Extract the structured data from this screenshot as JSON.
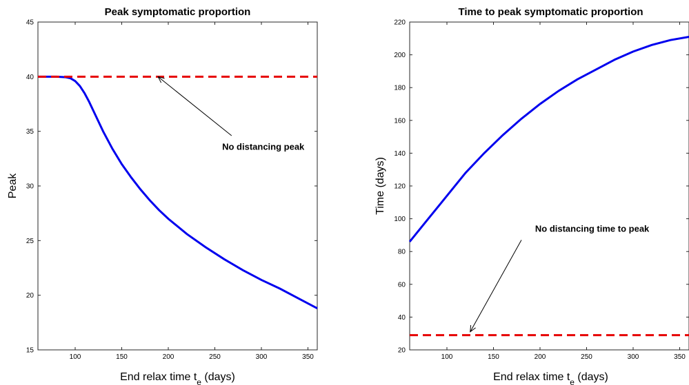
{
  "chart_data": [
    {
      "type": "line",
      "title": "Peak symptomatic proportion",
      "xlabel": "End relax time t",
      "xlabel_sub": "e",
      "xlabel_suffix": " (days)",
      "ylabel": "Peak",
      "xlim": [
        60,
        360
      ],
      "ylim": [
        15,
        45
      ],
      "xticks": [
        100,
        150,
        200,
        250,
        300,
        350
      ],
      "yticks": [
        15,
        20,
        25,
        30,
        35,
        40,
        45
      ],
      "grid": false,
      "series": [
        {
          "kind": "curve",
          "color": "#0000ee",
          "x": [
            60,
            80,
            90,
            95,
            100,
            105,
            110,
            115,
            120,
            125,
            130,
            140,
            150,
            160,
            170,
            180,
            190,
            200,
            220,
            240,
            260,
            280,
            300,
            320,
            340,
            360
          ],
          "y": [
            40.0,
            40.0,
            39.95,
            39.85,
            39.6,
            39.15,
            38.5,
            37.7,
            36.8,
            35.9,
            35.0,
            33.4,
            32.0,
            30.8,
            29.7,
            28.7,
            27.8,
            27.0,
            25.6,
            24.4,
            23.3,
            22.3,
            21.4,
            20.6,
            19.7,
            18.8
          ]
        },
        {
          "kind": "reference",
          "color": "#e60000",
          "x": [
            60,
            360
          ],
          "y": [
            40,
            40
          ]
        }
      ],
      "annotation": {
        "text": "No distancing peak",
        "text_at": [
          302,
          33.3
        ],
        "arrow_from": [
          268,
          34.6
        ],
        "arrow_to": [
          189,
          40.0
        ]
      }
    },
    {
      "type": "line",
      "title": "Time to peak symptomatic proportion",
      "xlabel": "End relax time t",
      "xlabel_sub": "e",
      "xlabel_suffix": " (days)",
      "ylabel": "Time (days)",
      "xlim": [
        60,
        360
      ],
      "ylim": [
        20,
        220
      ],
      "xticks": [
        100,
        150,
        200,
        250,
        300,
        350
      ],
      "yticks": [
        20,
        40,
        60,
        80,
        100,
        120,
        140,
        160,
        180,
        200,
        220
      ],
      "grid": false,
      "series": [
        {
          "kind": "curve",
          "color": "#0000ee",
          "x": [
            60,
            80,
            100,
            120,
            140,
            160,
            180,
            200,
            220,
            240,
            260,
            280,
            300,
            320,
            340,
            360
          ],
          "y": [
            86,
            100,
            114,
            128,
            140,
            151,
            161,
            170,
            178,
            185,
            191,
            197,
            202,
            206,
            209,
            211
          ]
        },
        {
          "kind": "reference",
          "color": "#e60000",
          "x": [
            60,
            360
          ],
          "y": [
            29,
            29
          ]
        }
      ],
      "annotation": {
        "text": "No distancing time to peak",
        "text_at": [
          256,
          92
        ],
        "arrow_from": [
          180,
          87
        ],
        "arrow_to": [
          125,
          31
        ]
      }
    }
  ]
}
